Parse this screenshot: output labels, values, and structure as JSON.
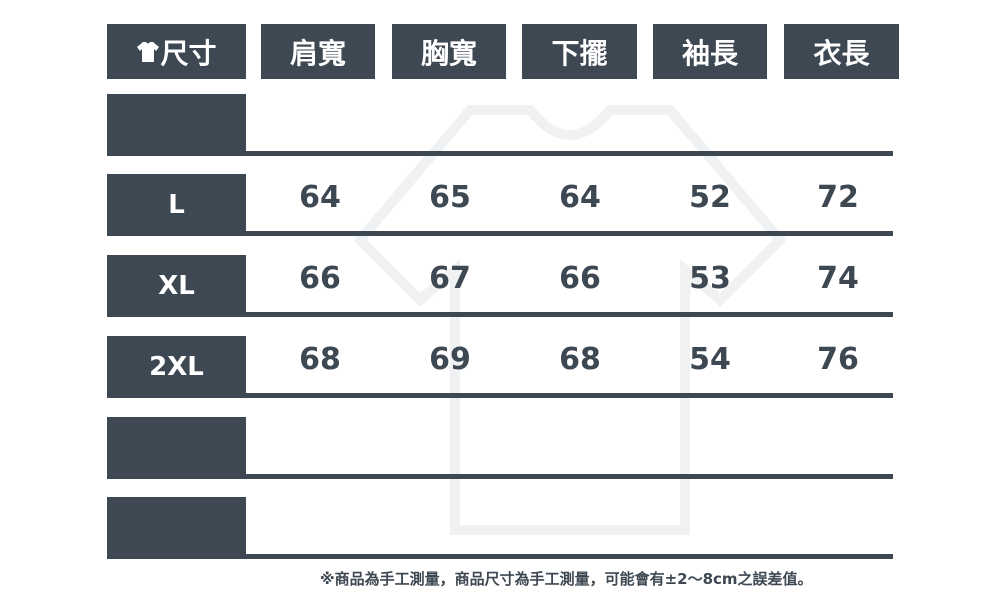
{
  "header": {
    "size_label": "尺寸",
    "icon": "tshirt-icon",
    "columns": [
      "肩寬",
      "胸寬",
      "下擺",
      "袖長",
      "衣長"
    ]
  },
  "rows": [
    {
      "size": "",
      "values": [
        "",
        "",
        "",
        "",
        ""
      ]
    },
    {
      "size": "L",
      "values": [
        "64",
        "65",
        "64",
        "52",
        "72"
      ]
    },
    {
      "size": "XL",
      "values": [
        "66",
        "67",
        "66",
        "53",
        "74"
      ]
    },
    {
      "size": "2XL",
      "values": [
        "68",
        "69",
        "68",
        "54",
        "76"
      ]
    },
    {
      "size": "",
      "values": [
        "",
        "",
        "",
        "",
        ""
      ]
    },
    {
      "size": "",
      "values": [
        "",
        "",
        "",
        "",
        ""
      ]
    }
  ],
  "note": "※商品為手工測量，商品尺寸為手工測量，可能會有±2～8cm之誤差值。",
  "colors": {
    "primary": "#3e4853",
    "background": "#ffffff"
  }
}
